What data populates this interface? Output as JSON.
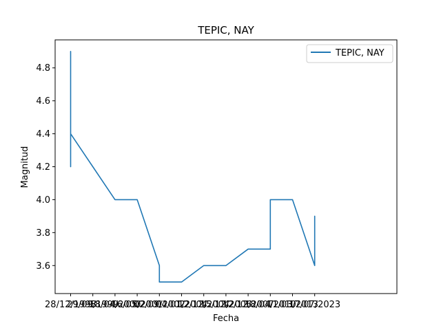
{
  "chart_data": {
    "type": "line",
    "title": "TEPIC, NAY",
    "xlabel": "Fecha",
    "ylabel": "Magnitud",
    "x_tick_labels": [
      "28/12/1998",
      "29/09/1999",
      "18/04/2000",
      "16/05/2001",
      "02/09/2002",
      "04/01/2004",
      "12/12/2004",
      "15/12/2006",
      "12/12/2007",
      "18/04/2010",
      "11/03/2013",
      "17/07/2023"
    ],
    "y_ticks": [
      3.6,
      3.8,
      4.0,
      4.2,
      4.4,
      4.6,
      4.8
    ],
    "y_tick_labels": [
      "3.6",
      "3.8",
      "4.0",
      "4.2",
      "4.4",
      "4.6",
      "4.8"
    ],
    "ylim": [
      3.43,
      4.97
    ],
    "grid": false,
    "legend_position": "top-right",
    "series": [
      {
        "name": "TEPIC, NAY",
        "color": "#1f77b4",
        "x": [
          "28/12/1998",
          "28/12/1998",
          "28/12/1998",
          "28/12/1998",
          "28/12/1998",
          "28/12/1998",
          "29/09/1999",
          "18/04/2000",
          "16/05/2001",
          "02/09/2002",
          "02/09/2002",
          "04/01/2004",
          "12/12/2004",
          "15/12/2006",
          "12/12/2007",
          "18/04/2010",
          "18/04/2010",
          "11/03/2013",
          "17/07/2023",
          "17/07/2023",
          "17/07/2023",
          "17/07/2023"
        ],
        "x_index": [
          0,
          0,
          0,
          0,
          0,
          0,
          1,
          2,
          3,
          4,
          4,
          5,
          6,
          7,
          8,
          9,
          9,
          10,
          11,
          11,
          11,
          11
        ],
        "values": [
          4.2,
          4.9,
          4.2,
          4.4,
          4.3,
          4.4,
          4.2,
          4.0,
          4.0,
          3.6,
          3.5,
          3.5,
          3.6,
          3.6,
          3.7,
          3.7,
          4.0,
          4.0,
          3.6,
          3.6,
          3.9,
          3.7
        ]
      }
    ]
  }
}
